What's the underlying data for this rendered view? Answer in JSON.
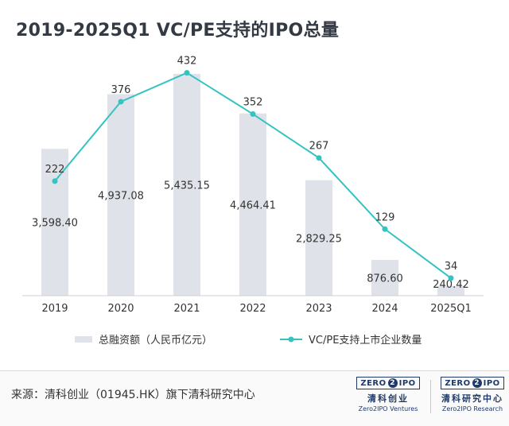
{
  "chart_data": {
    "type": "bar",
    "title": "2019-2025Q1 VC/PE支持的IPO总量",
    "categories": [
      "2019",
      "2020",
      "2021",
      "2022",
      "2023",
      "2024",
      "2025Q1"
    ],
    "series": [
      {
        "name": "总融资额（人民币亿元）",
        "type": "bar",
        "color": "#dfe2e8",
        "values": [
          3598.4,
          4937.08,
          5435.15,
          4464.41,
          2829.25,
          876.6,
          240.42
        ],
        "value_labels": [
          "3,598.40",
          "4,937.08",
          "5,435.15",
          "4,464.41",
          "2,829.25",
          "876.60",
          "240.42"
        ]
      },
      {
        "name": "VC/PE支持上市企业数量",
        "type": "line",
        "color": "#33c3c3",
        "values": [
          222,
          376,
          432,
          352,
          267,
          129,
          34
        ],
        "value_labels": [
          "222",
          "376",
          "432",
          "352",
          "267",
          "129",
          "34"
        ]
      }
    ],
    "bar_ylim": [
      0,
      6700
    ],
    "line_ylim": [
      0,
      530
    ],
    "grid": false,
    "legend_position": "bottom"
  },
  "footer": {
    "source": "来源：清科创业（01945.HK）旗下清科研究中心",
    "logo1": {
      "box": "ZERO",
      "mid": "2",
      "end": "IPO",
      "cn": "清科创业",
      "en": "Zero2IPO Ventures"
    },
    "logo2": {
      "box": "ZERO",
      "mid": "2",
      "end": "IPO",
      "cn": "清科研究中心",
      "en": "Zero2IPO Research"
    }
  }
}
